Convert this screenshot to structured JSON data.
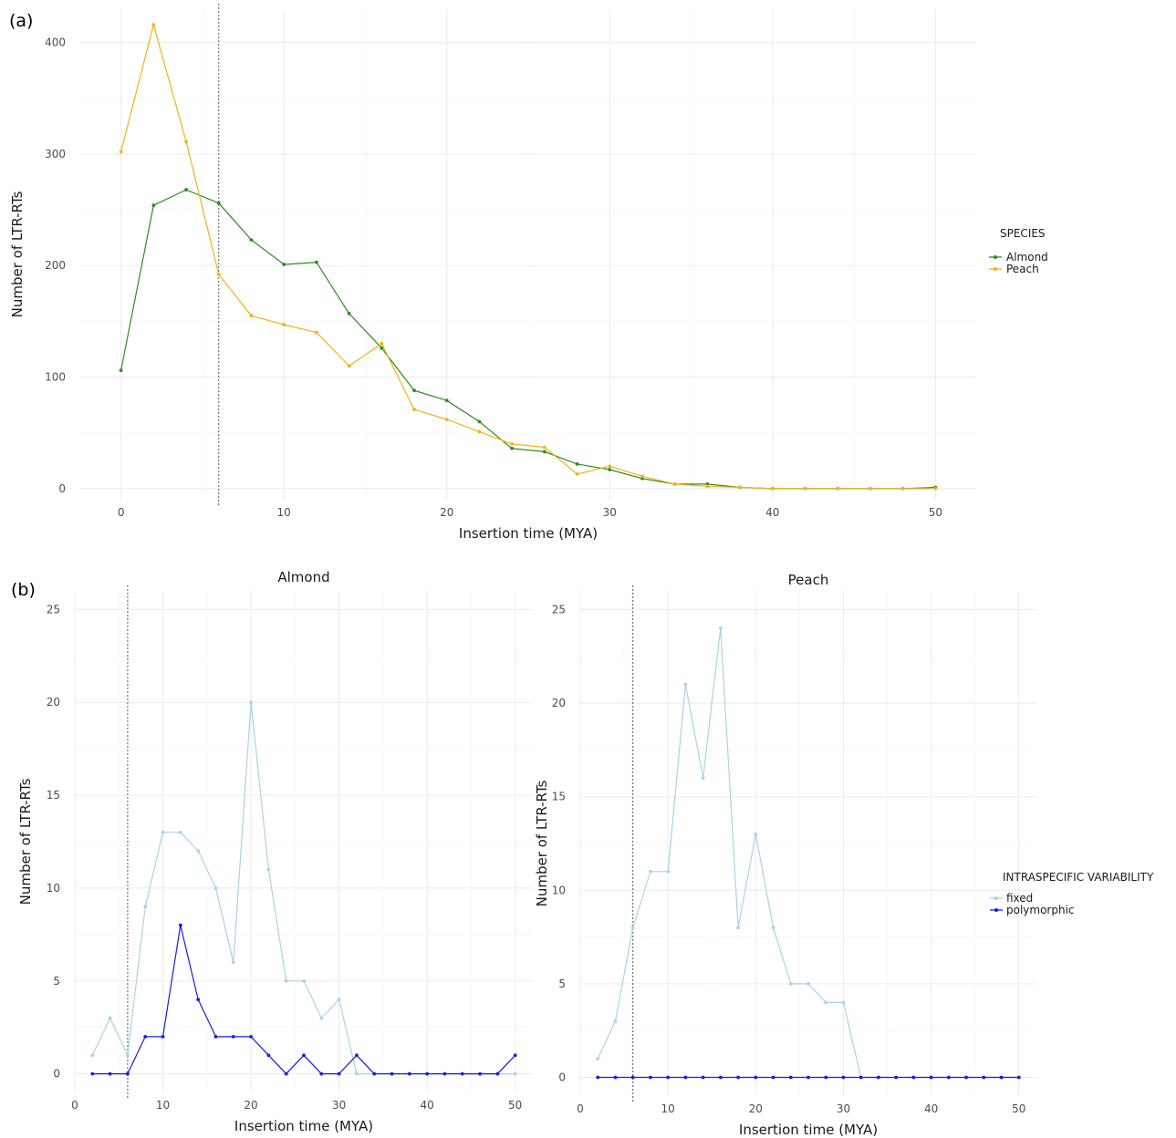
{
  "panel_labels": {
    "a": "(a)",
    "b": "(b)"
  },
  "colors": {
    "almond": "#2e8b20",
    "peach": "#f5b01a",
    "fixed": "#a8d4e6",
    "polymorphic": "#1a1aee"
  },
  "chart_data": [
    {
      "type": "line",
      "panel": "(a)",
      "title": "",
      "xlabel": "Insertion time (MYA)",
      "ylabel": "Number of LTR-RTs",
      "xlim": [
        -2.5,
        52.5
      ],
      "ylim": [
        -10,
        430
      ],
      "x_ticks": [
        0,
        10,
        20,
        30,
        40,
        50
      ],
      "y_ticks": [
        0,
        100,
        200,
        300,
        400
      ],
      "vline_x": 6,
      "grid": true,
      "legend": {
        "title": "SPECIES",
        "position": "right"
      },
      "x": [
        0,
        2,
        4,
        6,
        8,
        10,
        12,
        14,
        16,
        18,
        20,
        22,
        24,
        26,
        28,
        30,
        32,
        34,
        36,
        38,
        40,
        42,
        44,
        46,
        48,
        50
      ],
      "series": [
        {
          "name": "Almond",
          "color": "#2e8b20",
          "values": [
            106,
            254,
            268,
            256,
            223,
            201,
            203,
            157,
            126,
            88,
            79,
            60,
            36,
            33,
            22,
            17,
            9,
            4,
            4,
            1,
            0,
            0,
            0,
            0,
            0,
            1
          ]
        },
        {
          "name": "Peach",
          "color": "#f5b01a",
          "values": [
            302,
            416,
            311,
            192,
            155,
            147,
            140,
            110,
            130,
            71,
            62,
            51,
            40,
            37,
            13,
            20,
            11,
            4,
            2,
            1,
            0,
            0,
            0,
            0,
            0,
            0
          ]
        }
      ]
    },
    {
      "type": "line",
      "panel": "(b)",
      "title": "Almond",
      "xlabel": "Insertion time (MYA)",
      "ylabel": "Number of LTR-RTs",
      "xlim": [
        0,
        52
      ],
      "ylim": [
        -1,
        26
      ],
      "x_ticks": [
        0,
        10,
        20,
        30,
        40,
        50
      ],
      "y_ticks": [
        0,
        5,
        10,
        15,
        20,
        25
      ],
      "vline_x": 6,
      "grid": true,
      "x": [
        2,
        4,
        6,
        8,
        10,
        12,
        14,
        16,
        18,
        20,
        22,
        24,
        26,
        28,
        30,
        32,
        34,
        36,
        38,
        40,
        42,
        44,
        46,
        48,
        50
      ],
      "series": [
        {
          "name": "fixed",
          "color": "#a8d4e6",
          "values": [
            1,
            3,
            1,
            9,
            13,
            13,
            12,
            10,
            6,
            20,
            11,
            5,
            5,
            3,
            4,
            0,
            0,
            0,
            0,
            0,
            0,
            0,
            0,
            0,
            0
          ]
        },
        {
          "name": "polymorphic",
          "color": "#1a1aee",
          "values": [
            0,
            0,
            0,
            2,
            2,
            8,
            4,
            2,
            2,
            2,
            1,
            0,
            1,
            0,
            0,
            1,
            0,
            0,
            0,
            0,
            0,
            0,
            0,
            0,
            1
          ]
        }
      ]
    },
    {
      "type": "line",
      "panel": "(b)",
      "title": "Peach",
      "xlabel": "Insertion time (MYA)",
      "ylabel": "Number of LTR-RTs",
      "xlim": [
        0,
        52
      ],
      "ylim": [
        -1,
        26
      ],
      "x_ticks": [
        0,
        10,
        20,
        30,
        40,
        50
      ],
      "y_ticks": [
        0,
        5,
        10,
        15,
        20,
        25
      ],
      "vline_x": 6,
      "grid": true,
      "legend": {
        "title": "INTRASPECIFIC VARIABILITY",
        "position": "right"
      },
      "x": [
        2,
        4,
        6,
        8,
        10,
        12,
        14,
        16,
        18,
        20,
        22,
        24,
        26,
        28,
        30,
        32,
        34,
        36,
        38,
        40,
        42,
        44,
        46,
        48,
        50
      ],
      "series": [
        {
          "name": "fixed",
          "color": "#a8d4e6",
          "values": [
            1,
            3,
            8,
            11,
            11,
            21,
            16,
            24,
            8,
            13,
            8,
            5,
            5,
            4,
            4,
            0,
            0,
            0,
            0,
            0,
            0,
            0,
            0,
            0,
            0
          ]
        },
        {
          "name": "polymorphic",
          "color": "#1a1aee",
          "values": [
            0,
            0,
            0,
            0,
            0,
            0,
            0,
            0,
            0,
            0,
            0,
            0,
            0,
            0,
            0,
            0,
            0,
            0,
            0,
            0,
            0,
            0,
            0,
            0,
            0
          ]
        }
      ]
    }
  ]
}
